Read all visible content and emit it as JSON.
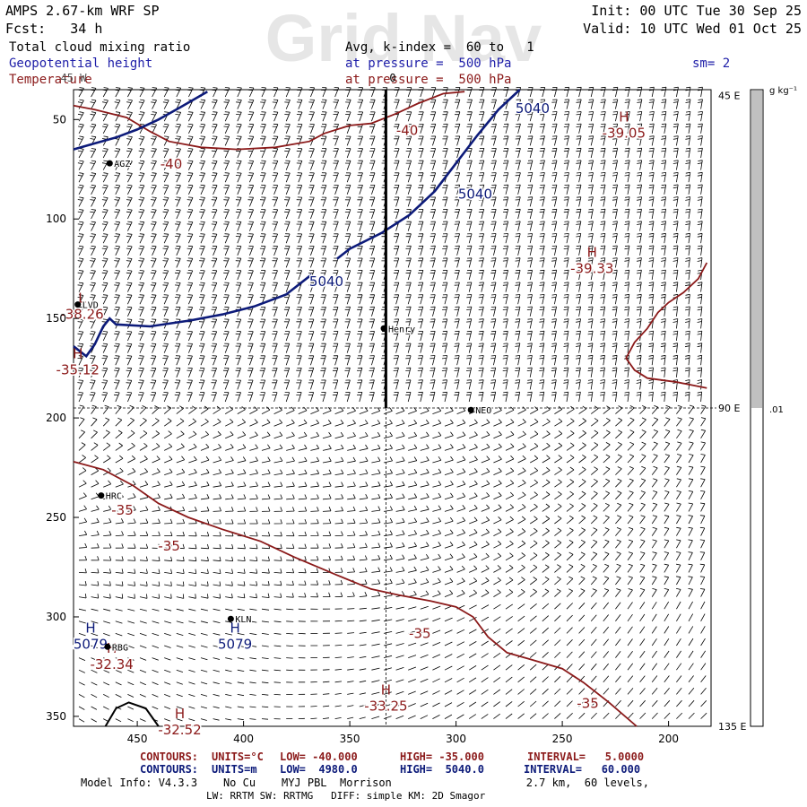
{
  "header": {
    "model_title": "AMPS 2.67-km WRF SP",
    "forecast": "Fcst:   34 h",
    "init": "Init: 00 UTC Tue 30 Sep 25",
    "valid": "Valid: 10 UTC Wed 01 Oct 25",
    "watermark": "Grid Nav",
    "field1": "Total cloud mixing ratio",
    "field1_detail": "Avg, k-index =  60 to   1",
    "field2": "Geopotential height",
    "field2_detail": "at pressure =  500 hPa",
    "field3": "Temperature",
    "field3_detail": "at pressure =  500 hPa",
    "smoothing": "sm= 2"
  },
  "colors": {
    "temperature": "#8b1a1a",
    "height": "#0d1b7a",
    "text_blue": "#1e1ea8",
    "black": "#000000",
    "colorbar_fill": "#c0c0c0"
  },
  "map": {
    "x_axis": {
      "range": [
        480,
        180
      ],
      "ticks": [
        "450",
        "400",
        "350",
        "300",
        "250",
        "200"
      ],
      "tick_values": [
        450,
        400,
        350,
        300,
        250,
        200
      ]
    },
    "y_axis": {
      "range": [
        35,
        355
      ],
      "ticks": [
        "50",
        "100",
        "150",
        "200",
        "250",
        "300",
        "350"
      ],
      "tick_values": [
        50,
        100,
        150,
        200,
        250,
        300,
        350
      ]
    },
    "top_longitude": "0",
    "corner_label": "45 W",
    "right_labels": [
      {
        "text": "45 E",
        "y": 38
      },
      {
        "text": "90 E",
        "y": 195
      },
      {
        "text": "135 E",
        "y": 355
      }
    ],
    "stations": [
      {
        "name": "AGZ",
        "x": 463,
        "y": 72
      },
      {
        "name": "LVD",
        "x": 478,
        "y": 143
      },
      {
        "name": "Henry",
        "x": 334,
        "y": 155
      },
      {
        "name": "NEO",
        "x": 293,
        "y": 196
      },
      {
        "name": "HRC",
        "x": 467,
        "y": 239
      },
      {
        "name": "KLN",
        "x": 406,
        "y": 301
      },
      {
        "name": "RBG",
        "x": 464,
        "y": 315
      }
    ],
    "temperature_labels": [
      {
        "text": "-40",
        "x": 323,
        "y": 55
      },
      {
        "text": "-40",
        "x": 434,
        "y": 72
      },
      {
        "text": "-35",
        "x": 457,
        "y": 246
      },
      {
        "text": "-35",
        "x": 435,
        "y": 264
      },
      {
        "text": "-35",
        "x": 317,
        "y": 308
      },
      {
        "text": "-35",
        "x": 238,
        "y": 343
      }
    ],
    "height_labels": [
      {
        "text": "5040",
        "x": 264,
        "y": 44
      },
      {
        "text": "5040",
        "x": 291,
        "y": 87
      },
      {
        "text": "5040",
        "x": 361,
        "y": 131
      }
    ],
    "extrema": [
      {
        "type": "H",
        "field": "temperature",
        "label": "H",
        "value": "-39.05",
        "x": 221,
        "y": 51
      },
      {
        "type": "H",
        "field": "temperature",
        "label": "H",
        "value": "-39.33",
        "x": 236,
        "y": 119
      },
      {
        "type": "L",
        "field": "temperature",
        "label": "L",
        "value": "-38.26",
        "x": 476,
        "y": 142
      },
      {
        "type": "H",
        "field": "temperature",
        "label": "H",
        "value": "-35.12",
        "x": 478,
        "y": 170
      },
      {
        "type": "H",
        "field": "height",
        "label": "H",
        "value": "5079",
        "x": 472,
        "y": 308
      },
      {
        "type": "H",
        "field": "temperature",
        "label": "H",
        "value": "-32.34",
        "x": 462,
        "y": 318
      },
      {
        "type": "H",
        "field": "height",
        "label": "H",
        "value": "5079",
        "x": 404,
        "y": 308
      },
      {
        "type": "H",
        "field": "temperature",
        "label": "H",
        "value": "-33.25",
        "x": 333,
        "y": 339
      },
      {
        "type": "H",
        "field": "temperature",
        "label": "H",
        "value": "-32.52",
        "x": 430,
        "y": 351
      }
    ],
    "temperature_contours": [
      {
        "level": -40,
        "points": [
          [
            480,
            43
          ],
          [
            470,
            45
          ],
          [
            455,
            49
          ],
          [
            444,
            56
          ],
          [
            435,
            61
          ],
          [
            420,
            64
          ],
          [
            403,
            65
          ],
          [
            385,
            64
          ],
          [
            369,
            61
          ],
          [
            362,
            57
          ],
          [
            350,
            53
          ],
          [
            340,
            52
          ],
          [
            328,
            47
          ],
          [
            318,
            42
          ],
          [
            306,
            37
          ],
          [
            296,
            36
          ]
        ]
      },
      {
        "level": -35,
        "points": [
          [
            480,
            222
          ],
          [
            466,
            226
          ],
          [
            452,
            234
          ],
          [
            440,
            243
          ],
          [
            426,
            250
          ],
          [
            410,
            256
          ],
          [
            392,
            262
          ],
          [
            376,
            270
          ],
          [
            356,
            279
          ],
          [
            340,
            286
          ],
          [
            327,
            289
          ],
          [
            312,
            292
          ],
          [
            300,
            295
          ],
          [
            292,
            300
          ],
          [
            285,
            310
          ],
          [
            276,
            318
          ],
          [
            266,
            321
          ],
          [
            250,
            326
          ],
          [
            240,
            333
          ],
          [
            228,
            343
          ],
          [
            215,
            355
          ]
        ]
      },
      {
        "level": -35,
        "points": [
          [
            182,
            122
          ],
          [
            186,
            130
          ],
          [
            193,
            137
          ],
          [
            200,
            142
          ],
          [
            205,
            147
          ],
          [
            210,
            155
          ],
          [
            216,
            162
          ],
          [
            220,
            170
          ],
          [
            216,
            176
          ],
          [
            210,
            180
          ],
          [
            196,
            182
          ],
          [
            182,
            185
          ]
        ]
      }
    ],
    "height_contours": [
      {
        "level": 5040,
        "points": [
          [
            480,
            65
          ],
          [
            470,
            62
          ],
          [
            460,
            59
          ],
          [
            450,
            55
          ],
          [
            440,
            50
          ],
          [
            430,
            44
          ],
          [
            417,
            36
          ]
        ]
      },
      {
        "level": 5040,
        "points": [
          [
            270,
            35
          ],
          [
            280,
            45
          ],
          [
            290,
            58
          ],
          [
            300,
            72
          ],
          [
            310,
            86
          ],
          [
            322,
            98
          ],
          [
            335,
            107
          ],
          [
            350,
            115
          ],
          [
            356,
            120
          ]
        ]
      },
      {
        "level": 5040,
        "points": [
          [
            368,
            128
          ],
          [
            380,
            138
          ],
          [
            395,
            144
          ],
          [
            410,
            148
          ],
          [
            425,
            151
          ],
          [
            444,
            154
          ],
          [
            460,
            153
          ],
          [
            463,
            150
          ],
          [
            466,
            154
          ],
          [
            470,
            163
          ],
          [
            474,
            169
          ],
          [
            480,
            164
          ]
        ]
      }
    ],
    "coast_lines": [
      {
        "points": [
          [
            465,
            355
          ],
          [
            460,
            346
          ],
          [
            454,
            343
          ],
          [
            446,
            346
          ],
          [
            440,
            355
          ]
        ]
      }
    ],
    "cross_section": {
      "x": 333,
      "y_from": 35,
      "y_to": 195
    },
    "reference_lines": {
      "vertical_x": 333,
      "horizontal_y": 195
    }
  },
  "colorbar": {
    "unit_label": "g kg⁻¹",
    "value_label": ".01",
    "fill_fraction": 0.5
  },
  "footer": {
    "temperature_contours": {
      "prefix": "CONTOURS:",
      "units": "UNITS=°C",
      "low": "LOW= -40.000",
      "high": "HIGH= -35.000",
      "interval": "INTERVAL=   5.0000"
    },
    "height_contours": {
      "prefix": "CONTOURS:",
      "units": "UNITS=m",
      "low": "LOW=  4980.0",
      "high": "HIGH=  5040.0",
      "interval": "INTERVAL=   60.000"
    },
    "model_info_1": "Model Info: V4.3.3    No Cu    MYJ PBL  Morrison",
    "model_info_1b": "2.7 km,  60 levels,",
    "model_info_2": "LW: RRTM SW: RRTMG   DIFF: simple KM: 2D Smagor"
  }
}
